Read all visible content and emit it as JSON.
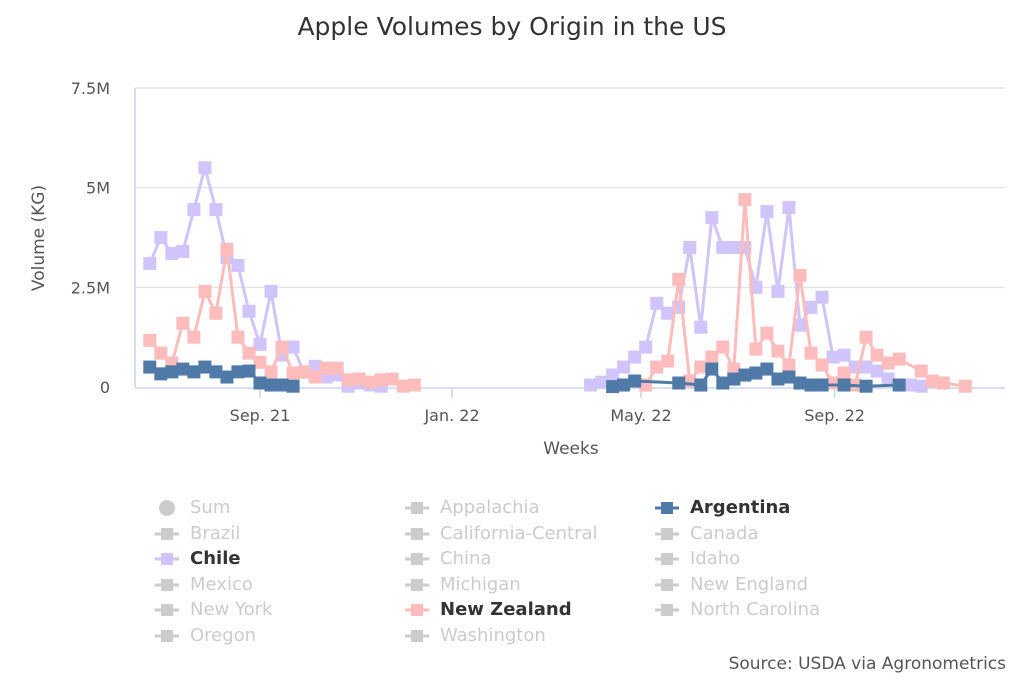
{
  "chart_data": {
    "type": "line",
    "title": "Apple Volumes by Origin in the US",
    "xlabel": "Weeks",
    "ylabel": "Volume (KG)",
    "ylim": [
      0,
      7500000
    ],
    "yticks": [
      {
        "v": 0,
        "label": "0"
      },
      {
        "v": 2500000,
        "label": "2.5M"
      },
      {
        "v": 5000000,
        "label": "5M"
      },
      {
        "v": 7500000,
        "label": "7.5M"
      }
    ],
    "xticks": [
      {
        "date": "2021-09-01",
        "label": "Sep. 21"
      },
      {
        "date": "2022-01-01",
        "label": "Jan. 22"
      },
      {
        "date": "2022-05-01",
        "label": "May. 22"
      },
      {
        "date": "2022-09-01",
        "label": "Sep. 22"
      }
    ],
    "grid": true,
    "legend_position": "bottom",
    "series": [
      {
        "name": "Chile",
        "color": "#d0c4fb",
        "points": [
          [
            "2021-06-23",
            3100000
          ],
          [
            "2021-06-30",
            3750000
          ],
          [
            "2021-07-07",
            3350000
          ],
          [
            "2021-07-14",
            3400000
          ],
          [
            "2021-07-21",
            4450000
          ],
          [
            "2021-07-28",
            5500000
          ],
          [
            "2021-08-04",
            4450000
          ],
          [
            "2021-08-11",
            3250000
          ],
          [
            "2021-08-18",
            3050000
          ],
          [
            "2021-08-25",
            1900000
          ],
          [
            "2021-09-01",
            1070000
          ],
          [
            "2021-09-08",
            2400000
          ],
          [
            "2021-09-15",
            800000
          ],
          [
            "2021-09-22",
            1000000
          ],
          [
            "2021-09-29",
            370000
          ],
          [
            "2021-10-06",
            520000
          ],
          [
            "2021-10-13",
            250000
          ],
          [
            "2021-10-20",
            300000
          ],
          [
            "2021-10-27",
            20000
          ],
          [
            "2021-11-03",
            100000
          ],
          [
            "2021-11-10",
            50000
          ],
          [
            "2021-11-17",
            20000
          ],
          [
            "2022-03-30",
            50000
          ],
          [
            "2022-04-06",
            120000
          ],
          [
            "2022-04-13",
            300000
          ],
          [
            "2022-04-20",
            500000
          ],
          [
            "2022-04-27",
            750000
          ],
          [
            "2022-05-04",
            1000000
          ],
          [
            "2022-05-11",
            2100000
          ],
          [
            "2022-05-18",
            1850000
          ],
          [
            "2022-05-25",
            2000000
          ],
          [
            "2022-06-01",
            3500000
          ],
          [
            "2022-06-08",
            1500000
          ],
          [
            "2022-06-15",
            4250000
          ],
          [
            "2022-06-22",
            3500000
          ],
          [
            "2022-06-29",
            3500000
          ],
          [
            "2022-07-06",
            3500000
          ],
          [
            "2022-07-13",
            2500000
          ],
          [
            "2022-07-20",
            4400000
          ],
          [
            "2022-07-27",
            2400000
          ],
          [
            "2022-08-03",
            4500000
          ],
          [
            "2022-08-10",
            1550000
          ],
          [
            "2022-08-17",
            2000000
          ],
          [
            "2022-08-24",
            2250000
          ],
          [
            "2022-08-31",
            750000
          ],
          [
            "2022-09-07",
            800000
          ],
          [
            "2022-09-14",
            500000
          ],
          [
            "2022-09-21",
            500000
          ],
          [
            "2022-09-28",
            400000
          ],
          [
            "2022-10-05",
            200000
          ],
          [
            "2022-10-19",
            50000
          ],
          [
            "2022-10-26",
            20000
          ]
        ]
      },
      {
        "name": "New Zealand",
        "color": "#ffbcbc",
        "points": [
          [
            "2021-06-23",
            1170000
          ],
          [
            "2021-06-30",
            850000
          ],
          [
            "2021-07-07",
            600000
          ],
          [
            "2021-07-14",
            1600000
          ],
          [
            "2021-07-21",
            1250000
          ],
          [
            "2021-07-28",
            2400000
          ],
          [
            "2021-08-04",
            1850000
          ],
          [
            "2021-08-11",
            3450000
          ],
          [
            "2021-08-18",
            1250000
          ],
          [
            "2021-08-25",
            850000
          ],
          [
            "2021-09-01",
            620000
          ],
          [
            "2021-09-08",
            380000
          ],
          [
            "2021-09-15",
            1000000
          ],
          [
            "2021-09-22",
            350000
          ],
          [
            "2021-09-29",
            380000
          ],
          [
            "2021-10-06",
            250000
          ],
          [
            "2021-10-13",
            470000
          ],
          [
            "2021-10-20",
            470000
          ],
          [
            "2021-10-27",
            180000
          ],
          [
            "2021-11-03",
            200000
          ],
          [
            "2021-11-10",
            120000
          ],
          [
            "2021-11-17",
            180000
          ],
          [
            "2021-11-24",
            200000
          ],
          [
            "2021-12-01",
            20000
          ],
          [
            "2021-12-08",
            50000
          ],
          [
            "2022-05-04",
            50000
          ],
          [
            "2022-05-11",
            500000
          ],
          [
            "2022-05-18",
            650000
          ],
          [
            "2022-05-25",
            2700000
          ],
          [
            "2022-06-01",
            150000
          ],
          [
            "2022-06-08",
            500000
          ],
          [
            "2022-06-15",
            750000
          ],
          [
            "2022-06-22",
            1000000
          ],
          [
            "2022-06-29",
            450000
          ],
          [
            "2022-07-06",
            4700000
          ],
          [
            "2022-07-13",
            950000
          ],
          [
            "2022-07-20",
            1350000
          ],
          [
            "2022-07-27",
            900000
          ],
          [
            "2022-08-03",
            550000
          ],
          [
            "2022-08-10",
            2800000
          ],
          [
            "2022-08-17",
            850000
          ],
          [
            "2022-08-24",
            550000
          ],
          [
            "2022-08-31",
            100000
          ],
          [
            "2022-09-07",
            350000
          ],
          [
            "2022-09-14",
            50000
          ],
          [
            "2022-09-21",
            1250000
          ],
          [
            "2022-09-28",
            800000
          ],
          [
            "2022-10-05",
            600000
          ],
          [
            "2022-10-12",
            700000
          ],
          [
            "2022-10-26",
            400000
          ],
          [
            "2022-11-02",
            150000
          ],
          [
            "2022-11-09",
            100000
          ],
          [
            "2022-11-23",
            20000
          ]
        ]
      },
      {
        "name": "Argentina",
        "color": "#4f79a7",
        "points": [
          [
            "2021-06-23",
            500000
          ],
          [
            "2021-06-30",
            330000
          ],
          [
            "2021-07-07",
            380000
          ],
          [
            "2021-07-14",
            450000
          ],
          [
            "2021-07-21",
            380000
          ],
          [
            "2021-07-28",
            500000
          ],
          [
            "2021-08-04",
            380000
          ],
          [
            "2021-08-11",
            250000
          ],
          [
            "2021-08-18",
            380000
          ],
          [
            "2021-08-25",
            400000
          ],
          [
            "2021-09-01",
            100000
          ],
          [
            "2021-09-08",
            50000
          ],
          [
            "2021-09-15",
            50000
          ],
          [
            "2021-09-22",
            20000
          ],
          [
            "2022-04-13",
            10000
          ],
          [
            "2022-04-20",
            50000
          ],
          [
            "2022-04-27",
            150000
          ],
          [
            "2022-05-25",
            100000
          ],
          [
            "2022-06-08",
            50000
          ],
          [
            "2022-06-15",
            450000
          ],
          [
            "2022-06-22",
            100000
          ],
          [
            "2022-06-29",
            200000
          ],
          [
            "2022-07-06",
            300000
          ],
          [
            "2022-07-13",
            350000
          ],
          [
            "2022-07-20",
            450000
          ],
          [
            "2022-07-27",
            200000
          ],
          [
            "2022-08-03",
            250000
          ],
          [
            "2022-08-10",
            100000
          ],
          [
            "2022-08-17",
            50000
          ],
          [
            "2022-08-24",
            50000
          ],
          [
            "2022-09-07",
            50000
          ],
          [
            "2022-09-21",
            20000
          ],
          [
            "2022-10-12",
            50000
          ]
        ]
      }
    ]
  },
  "legend": [
    {
      "label": "Sum",
      "symbol": "circle",
      "active": false
    },
    {
      "label": "Appalachia",
      "active": false
    },
    {
      "label": "Argentina",
      "active": true,
      "color": "#4f79a7"
    },
    {
      "label": "Brazil",
      "active": false
    },
    {
      "label": "California-Central",
      "active": false
    },
    {
      "label": "Canada",
      "active": false
    },
    {
      "label": "Chile",
      "active": true,
      "color": "#d0c4fb"
    },
    {
      "label": "China",
      "active": false
    },
    {
      "label": "Idaho",
      "active": false
    },
    {
      "label": "Mexico",
      "active": false
    },
    {
      "label": "Michigan",
      "active": false
    },
    {
      "label": "New England",
      "active": false
    },
    {
      "label": "New York",
      "active": false
    },
    {
      "label": "New Zealand",
      "active": true,
      "color": "#ffbcbc"
    },
    {
      "label": "North Carolina",
      "active": false
    },
    {
      "label": "Oregon",
      "active": false
    },
    {
      "label": "Washington",
      "active": false
    }
  ],
  "source": "Source: USDA via Agronometrics"
}
